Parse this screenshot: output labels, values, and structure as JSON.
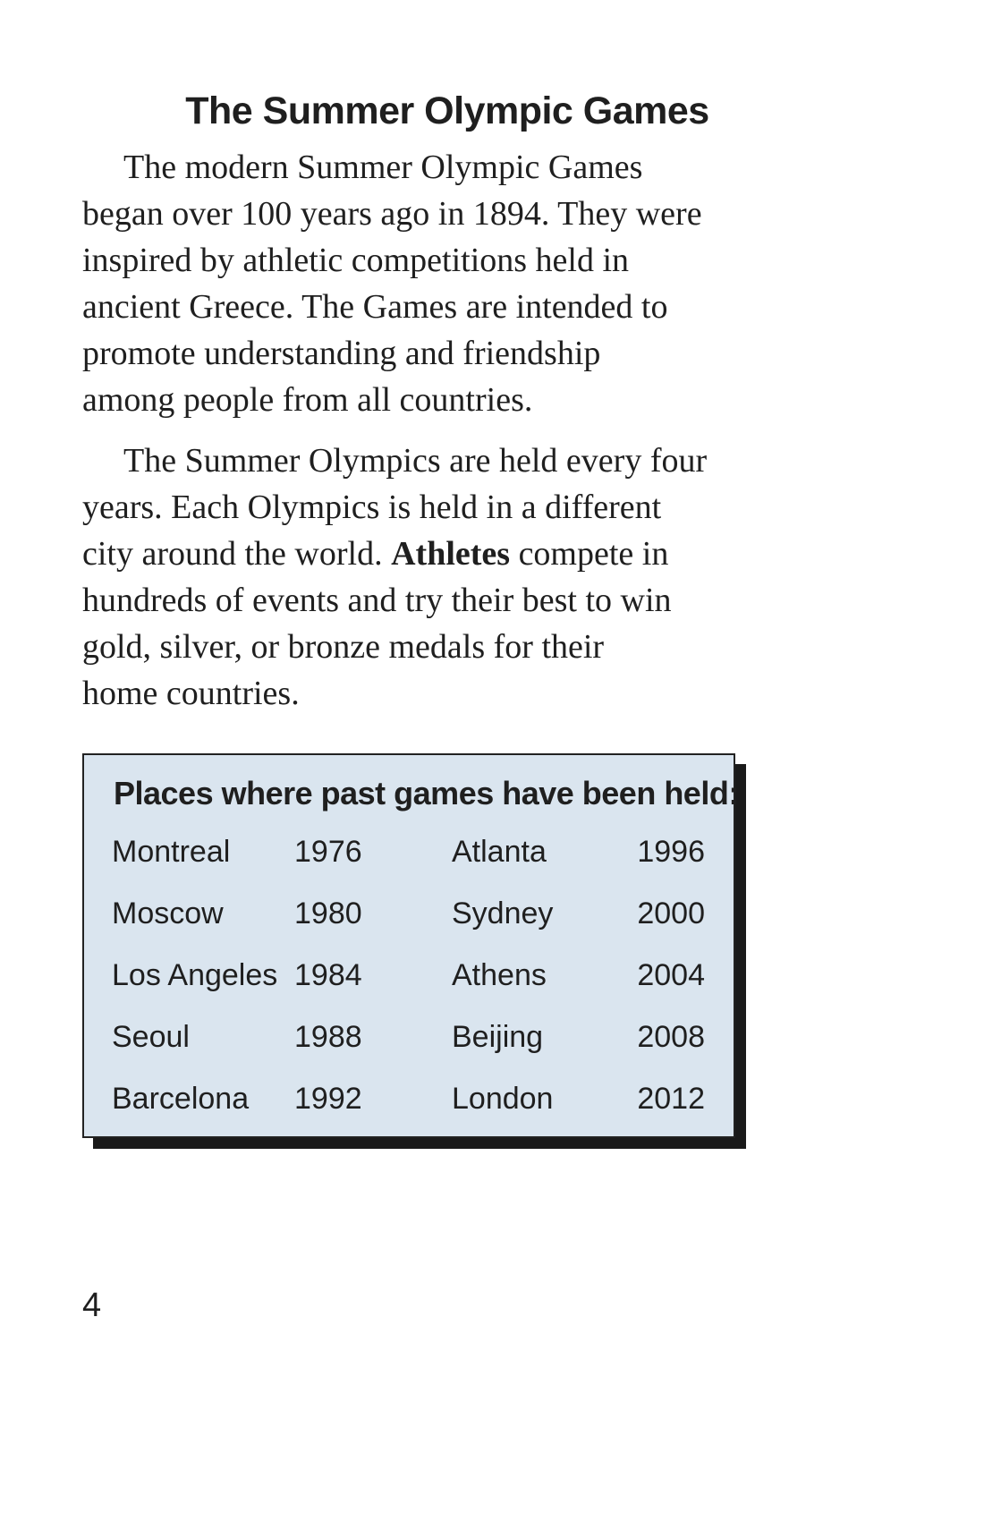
{
  "title": "The Summer Olympic Games",
  "paragraph1": {
    "lines": [
      "The modern Summer Olympic Games",
      "began over 100 years ago in 1894. They were",
      "inspired by athletic competitions held in",
      "ancient Greece. The Games are intended to",
      "promote understanding and friendship",
      "among people from all countries."
    ]
  },
  "paragraph2": {
    "line1": "The Summer Olympics are held every four",
    "line2": "years. Each Olympics is held in a different",
    "line3_before": "city around the world. ",
    "line3_bold": "Athletes",
    "line3_after": " compete in",
    "line4": "hundreds of events and try their best to win",
    "line5": "gold, silver, or bronze medals for their",
    "line6": "home countries."
  },
  "table": {
    "heading": "Places where past games have been held:",
    "rows": [
      {
        "city1": "Montreal",
        "year1": "1976",
        "city2": "Atlanta",
        "year2": "1996"
      },
      {
        "city1": "Moscow",
        "year1": "1980",
        "city2": "Sydney",
        "year2": "2000"
      },
      {
        "city1": "Los Angeles",
        "year1": "1984",
        "city2": "Athens",
        "year2": "2004"
      },
      {
        "city1": "Seoul",
        "year1": "1988",
        "city2": "Beijing",
        "year2": "2008"
      },
      {
        "city1": "Barcelona",
        "year1": "1992",
        "city2": "London",
        "year2": "2012"
      }
    ]
  },
  "page_number": "4"
}
